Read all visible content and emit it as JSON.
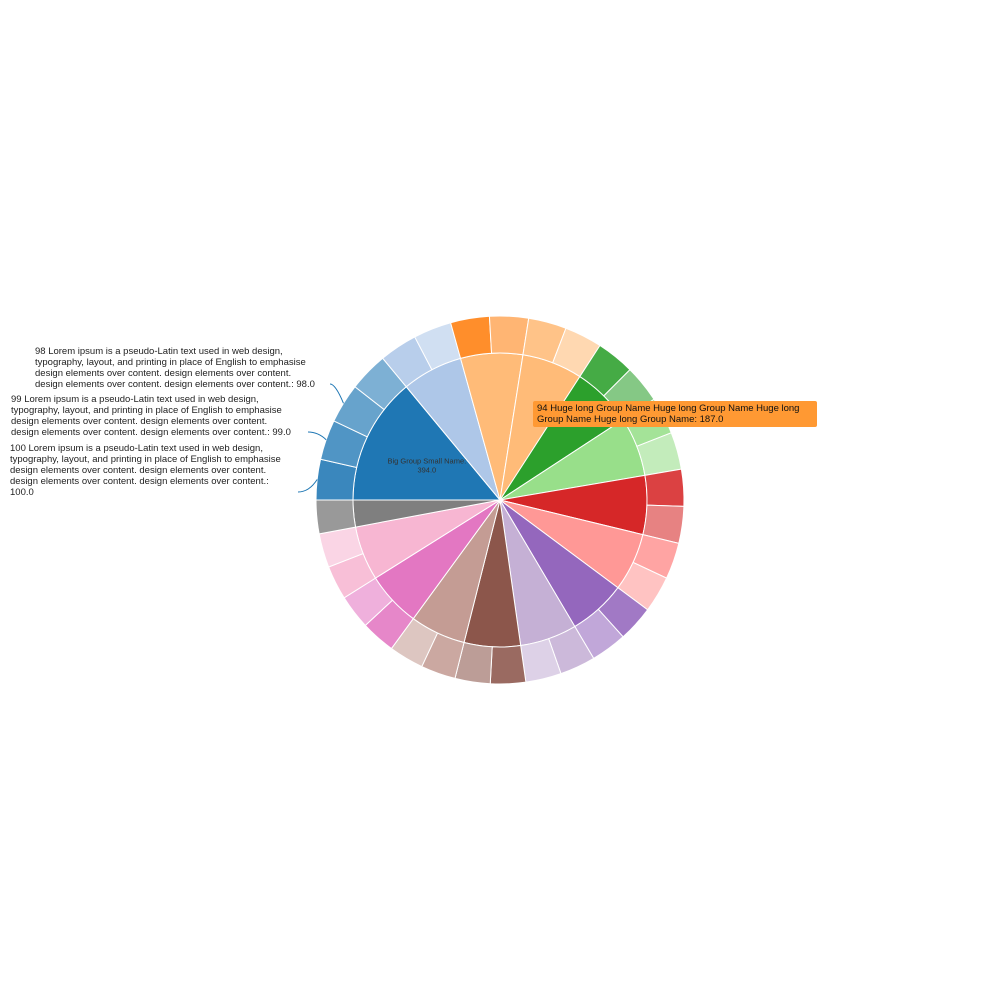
{
  "chart_data": {
    "type": "sunburst",
    "groups": [
      {
        "label": "Big Group Small Name",
        "value": 394.0,
        "color": "#1f77b4",
        "leaves": [
          {
            "label": "100 Lorem ipsum is a pseudo-Latin text used in web design, typography, layout, and printing in place of English to emphasise design elements over content. design elements over content. design elements over content. design elements over content.",
            "value": 100.0,
            "color": "#1f77b4"
          },
          {
            "label": "99 Lorem ipsum is a pseudo-Latin text used in web design, typography, layout, and printing in place of English to emphasise design elements over content. design elements over content. design elements over content. design elements over content.",
            "value": 99.0,
            "color": "#1f77b4"
          },
          {
            "label": "98 Lorem ipsum is a pseudo-Latin text used in web design, typography, layout, and printing in place of English to emphasise design elements over content. design elements over content. design elements over content. design elements over content.",
            "value": 98.0,
            "color": "#1f77b4"
          },
          {
            "label": "",
            "value": 97,
            "color": "#1f77b4"
          }
        ]
      },
      {
        "label": "",
        "value": 188,
        "color": "#aec7e8",
        "leaves": [
          {
            "label": "",
            "value": 94,
            "color": "#aec7e8"
          },
          {
            "label": "",
            "value": 94,
            "color": "#aec7e8"
          }
        ]
      },
      {
        "label": "",
        "value": 192,
        "color": "#ffbb78",
        "leaves": [
          {
            "label": "",
            "value": 96,
            "color": "#ff7f0e"
          },
          {
            "label": "",
            "value": 96,
            "color": "#ff7f0e"
          }
        ]
      },
      {
        "label": "",
        "value": 187,
        "color": "#ffbb78",
        "leaves": [
          {
            "label": "",
            "value": 94,
            "color": "#ffbb78"
          },
          {
            "label": "",
            "value": 93,
            "color": "#ffbb78"
          }
        ]
      },
      {
        "label": "94 Huge long Group Name Huge long Group Name Huge long Group Name Huge long Group Name",
        "value": 187.0,
        "color": "#2ca02c",
        "leaves": [
          {
            "label": "",
            "value": 94,
            "color": "#2ca02c"
          },
          {
            "label": "",
            "value": 93,
            "color": "#2ca02c"
          }
        ]
      },
      {
        "label": "",
        "value": 184,
        "color": "#98df8a",
        "leaves": [
          {
            "label": "",
            "value": 92,
            "color": "#98df8a"
          },
          {
            "label": "",
            "value": 92,
            "color": "#98df8a"
          }
        ]
      },
      {
        "label": "",
        "value": 182,
        "color": "#d62728",
        "leaves": [
          {
            "label": "",
            "value": 91,
            "color": "#d62728"
          },
          {
            "label": "",
            "value": 91,
            "color": "#d62728"
          }
        ]
      },
      {
        "label": "",
        "value": 180,
        "color": "#ff9896",
        "leaves": [
          {
            "label": "",
            "value": 90,
            "color": "#ff9896"
          },
          {
            "label": "",
            "value": 90,
            "color": "#ff9896"
          }
        ]
      },
      {
        "label": "",
        "value": 178,
        "color": "#9467bd",
        "leaves": [
          {
            "label": "",
            "value": 89,
            "color": "#9467bd"
          },
          {
            "label": "",
            "value": 89,
            "color": "#9467bd"
          }
        ]
      },
      {
        "label": "",
        "value": 176,
        "color": "#c5b0d5",
        "leaves": [
          {
            "label": "",
            "value": 88,
            "color": "#c5b0d5"
          },
          {
            "label": "",
            "value": 88,
            "color": "#c5b0d5"
          }
        ]
      },
      {
        "label": "",
        "value": 174,
        "color": "#8c564b",
        "leaves": [
          {
            "label": "",
            "value": 87,
            "color": "#8c564b"
          },
          {
            "label": "",
            "value": 87,
            "color": "#8c564b"
          }
        ]
      },
      {
        "label": "",
        "value": 172,
        "color": "#c49c94",
        "leaves": [
          {
            "label": "",
            "value": 86,
            "color": "#c49c94"
          },
          {
            "label": "",
            "value": 86,
            "color": "#c49c94"
          }
        ]
      },
      {
        "label": "",
        "value": 170,
        "color": "#e377c2",
        "leaves": [
          {
            "label": "",
            "value": 85,
            "color": "#e377c2"
          },
          {
            "label": "",
            "value": 85,
            "color": "#e377c2"
          }
        ]
      },
      {
        "label": "",
        "value": 168,
        "color": "#f7b6d2",
        "leaves": [
          {
            "label": "",
            "value": 84,
            "color": "#f7b6d2"
          },
          {
            "label": "",
            "value": 84,
            "color": "#f7b6d2"
          }
        ]
      },
      {
        "label": "",
        "value": 83,
        "color": "#7f7f7f",
        "leaves": [
          {
            "label": "",
            "value": 83,
            "color": "#7f7f7f"
          }
        ]
      }
    ],
    "tooltip": {
      "text": "94 Huge long Group Name Huge long Group Name Huge long Group Name Huge long Group Name: 187.0",
      "color": "#ff9933"
    }
  }
}
